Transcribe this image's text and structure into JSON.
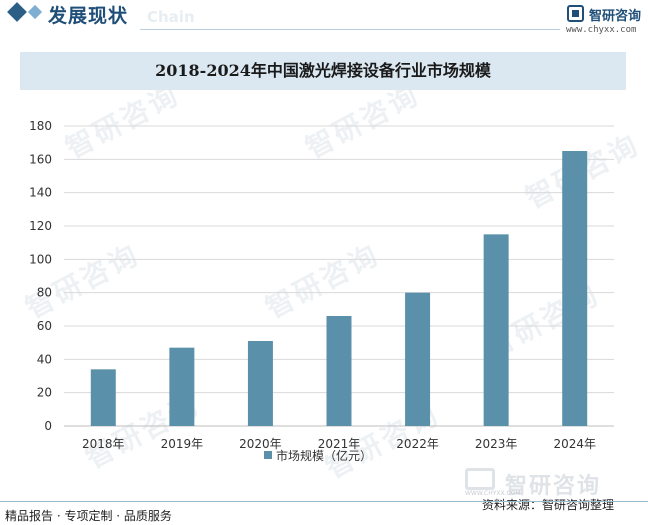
{
  "header": {
    "section_title": "发展现状",
    "section_subtitle": "Chain",
    "brand_name": "智研咨询",
    "brand_url": "www.chyxx.com"
  },
  "watermark_text": "智研咨询",
  "chart_data": {
    "type": "bar",
    "title": "2018-2024年中国激光焊接设备行业市场规模",
    "categories": [
      "2018年",
      "2019年",
      "2020年",
      "2021年",
      "2022年",
      "2023年",
      "2024年"
    ],
    "series": [
      {
        "name": "市场规模（亿元）",
        "values": [
          34,
          47,
          51,
          66,
          80,
          115,
          165
        ]
      }
    ],
    "ylim": [
      0,
      180
    ],
    "yticks": [
      0,
      20,
      40,
      60,
      80,
      100,
      120,
      140,
      160,
      180
    ],
    "xlabel": "",
    "ylabel": "",
    "grid": true,
    "legend": "bottom",
    "colors": {
      "bar": "#5b90aa",
      "grid": "#d9d9d9",
      "axis": "#bfbfbf"
    }
  },
  "footer": {
    "left_text": "精品报告 · 专项定制 · 品质服务",
    "source_text": "资料来源：智研咨询整理",
    "mark_text": "智研咨询",
    "mark_sub": "WWW.CHYXX.COM"
  }
}
